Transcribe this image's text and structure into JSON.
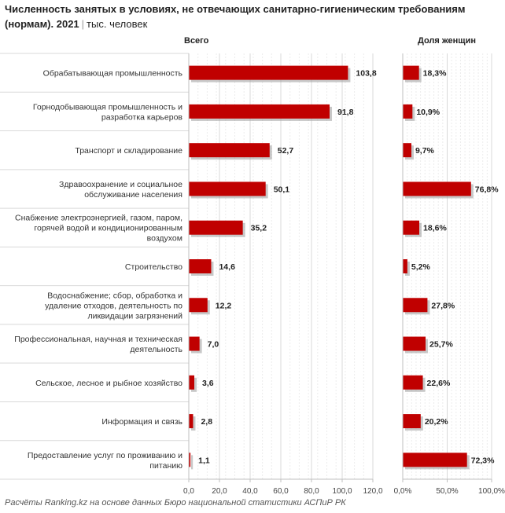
{
  "header": {
    "title": "Численность занятых в условиях, не отвечающих санитарно-гигиеническим требованиям (нормам). 2021",
    "separator": "|",
    "unit": "тыс. человек"
  },
  "source": "Расчёты Ranking.kz на основе данных Бюро национальной статистики АСПиР РК",
  "colors": {
    "bar": "#c00000",
    "grid": "#d9d9d9",
    "axis": "#bfbfbf"
  },
  "chart_data": [
    {
      "type": "bar",
      "orientation": "horizontal",
      "title": "Всего",
      "categories": [
        "Обрабатывающая промышленность",
        "Горнодобывающая промышленность и разработка карьеров",
        "Транспорт и складирование",
        "Здравоохранение и социальное обслуживание населения",
        "Снабжение электроэнергией, газом, паром, горячей водой и кондиционированным воздухом",
        "Строительство",
        "Водоснабжение; сбор, обработка и удаление отходов, деятельность по ликвидации загрязнений",
        "Профессиональная, научная и техническая деятельность",
        "Сельское, лесное и рыбное хозяйство",
        "Информация и связь",
        "Предоставление услуг по проживанию и питанию"
      ],
      "category_lines": [
        [
          "Обрабатывающая промышленность"
        ],
        [
          "Горнодобывающая промышленность и",
          "разработка карьеров"
        ],
        [
          "Транспорт и складирование"
        ],
        [
          "Здравоохранение и социальное",
          "обслуживание населения"
        ],
        [
          "Снабжение электроэнергией, газом, паром,",
          "горячей водой и кондиционированным",
          "воздухом"
        ],
        [
          "Строительство"
        ],
        [
          "Водоснабжение; сбор, обработка и",
          "удаление отходов, деятельность по",
          "ликвидации загрязнений"
        ],
        [
          "Профессиональная, научная и техническая",
          "деятельность"
        ],
        [
          "Сельское, лесное и рыбное хозяйство"
        ],
        [
          "Информация и связь"
        ],
        [
          "Предоставление услуг по проживанию и",
          "питанию"
        ]
      ],
      "values": [
        103.8,
        91.8,
        52.7,
        50.1,
        35.2,
        14.6,
        12.2,
        7.0,
        3.6,
        2.8,
        1.1
      ],
      "value_labels": [
        "103,8",
        "91,8",
        "52,7",
        "50,1",
        "35,2",
        "14,6",
        "12,2",
        "7,0",
        "3,6",
        "2,8",
        "1,1"
      ],
      "xlim": [
        0,
        120
      ],
      "ticks": [
        0,
        20,
        40,
        60,
        80,
        100,
        120
      ],
      "tick_labels": [
        "0,0",
        "20,0",
        "40,0",
        "60,0",
        "80,0",
        "100,0",
        "120,0"
      ],
      "grid": true
    },
    {
      "type": "bar",
      "orientation": "horizontal",
      "title": "Доля женщин",
      "values": [
        18.3,
        10.9,
        9.7,
        76.8,
        18.6,
        5.2,
        27.8,
        25.7,
        22.6,
        20.2,
        72.3
      ],
      "value_labels": [
        "18,3%",
        "10,9%",
        "9,7%",
        "76,8%",
        "18,6%",
        "5,2%",
        "27,8%",
        "25,7%",
        "22,6%",
        "20,2%",
        "72,3%"
      ],
      "xlim": [
        0,
        100
      ],
      "ticks": [
        0,
        50,
        100
      ],
      "tick_labels": [
        "0,0%",
        "50,0%",
        "100,0%"
      ],
      "grid": true
    }
  ]
}
